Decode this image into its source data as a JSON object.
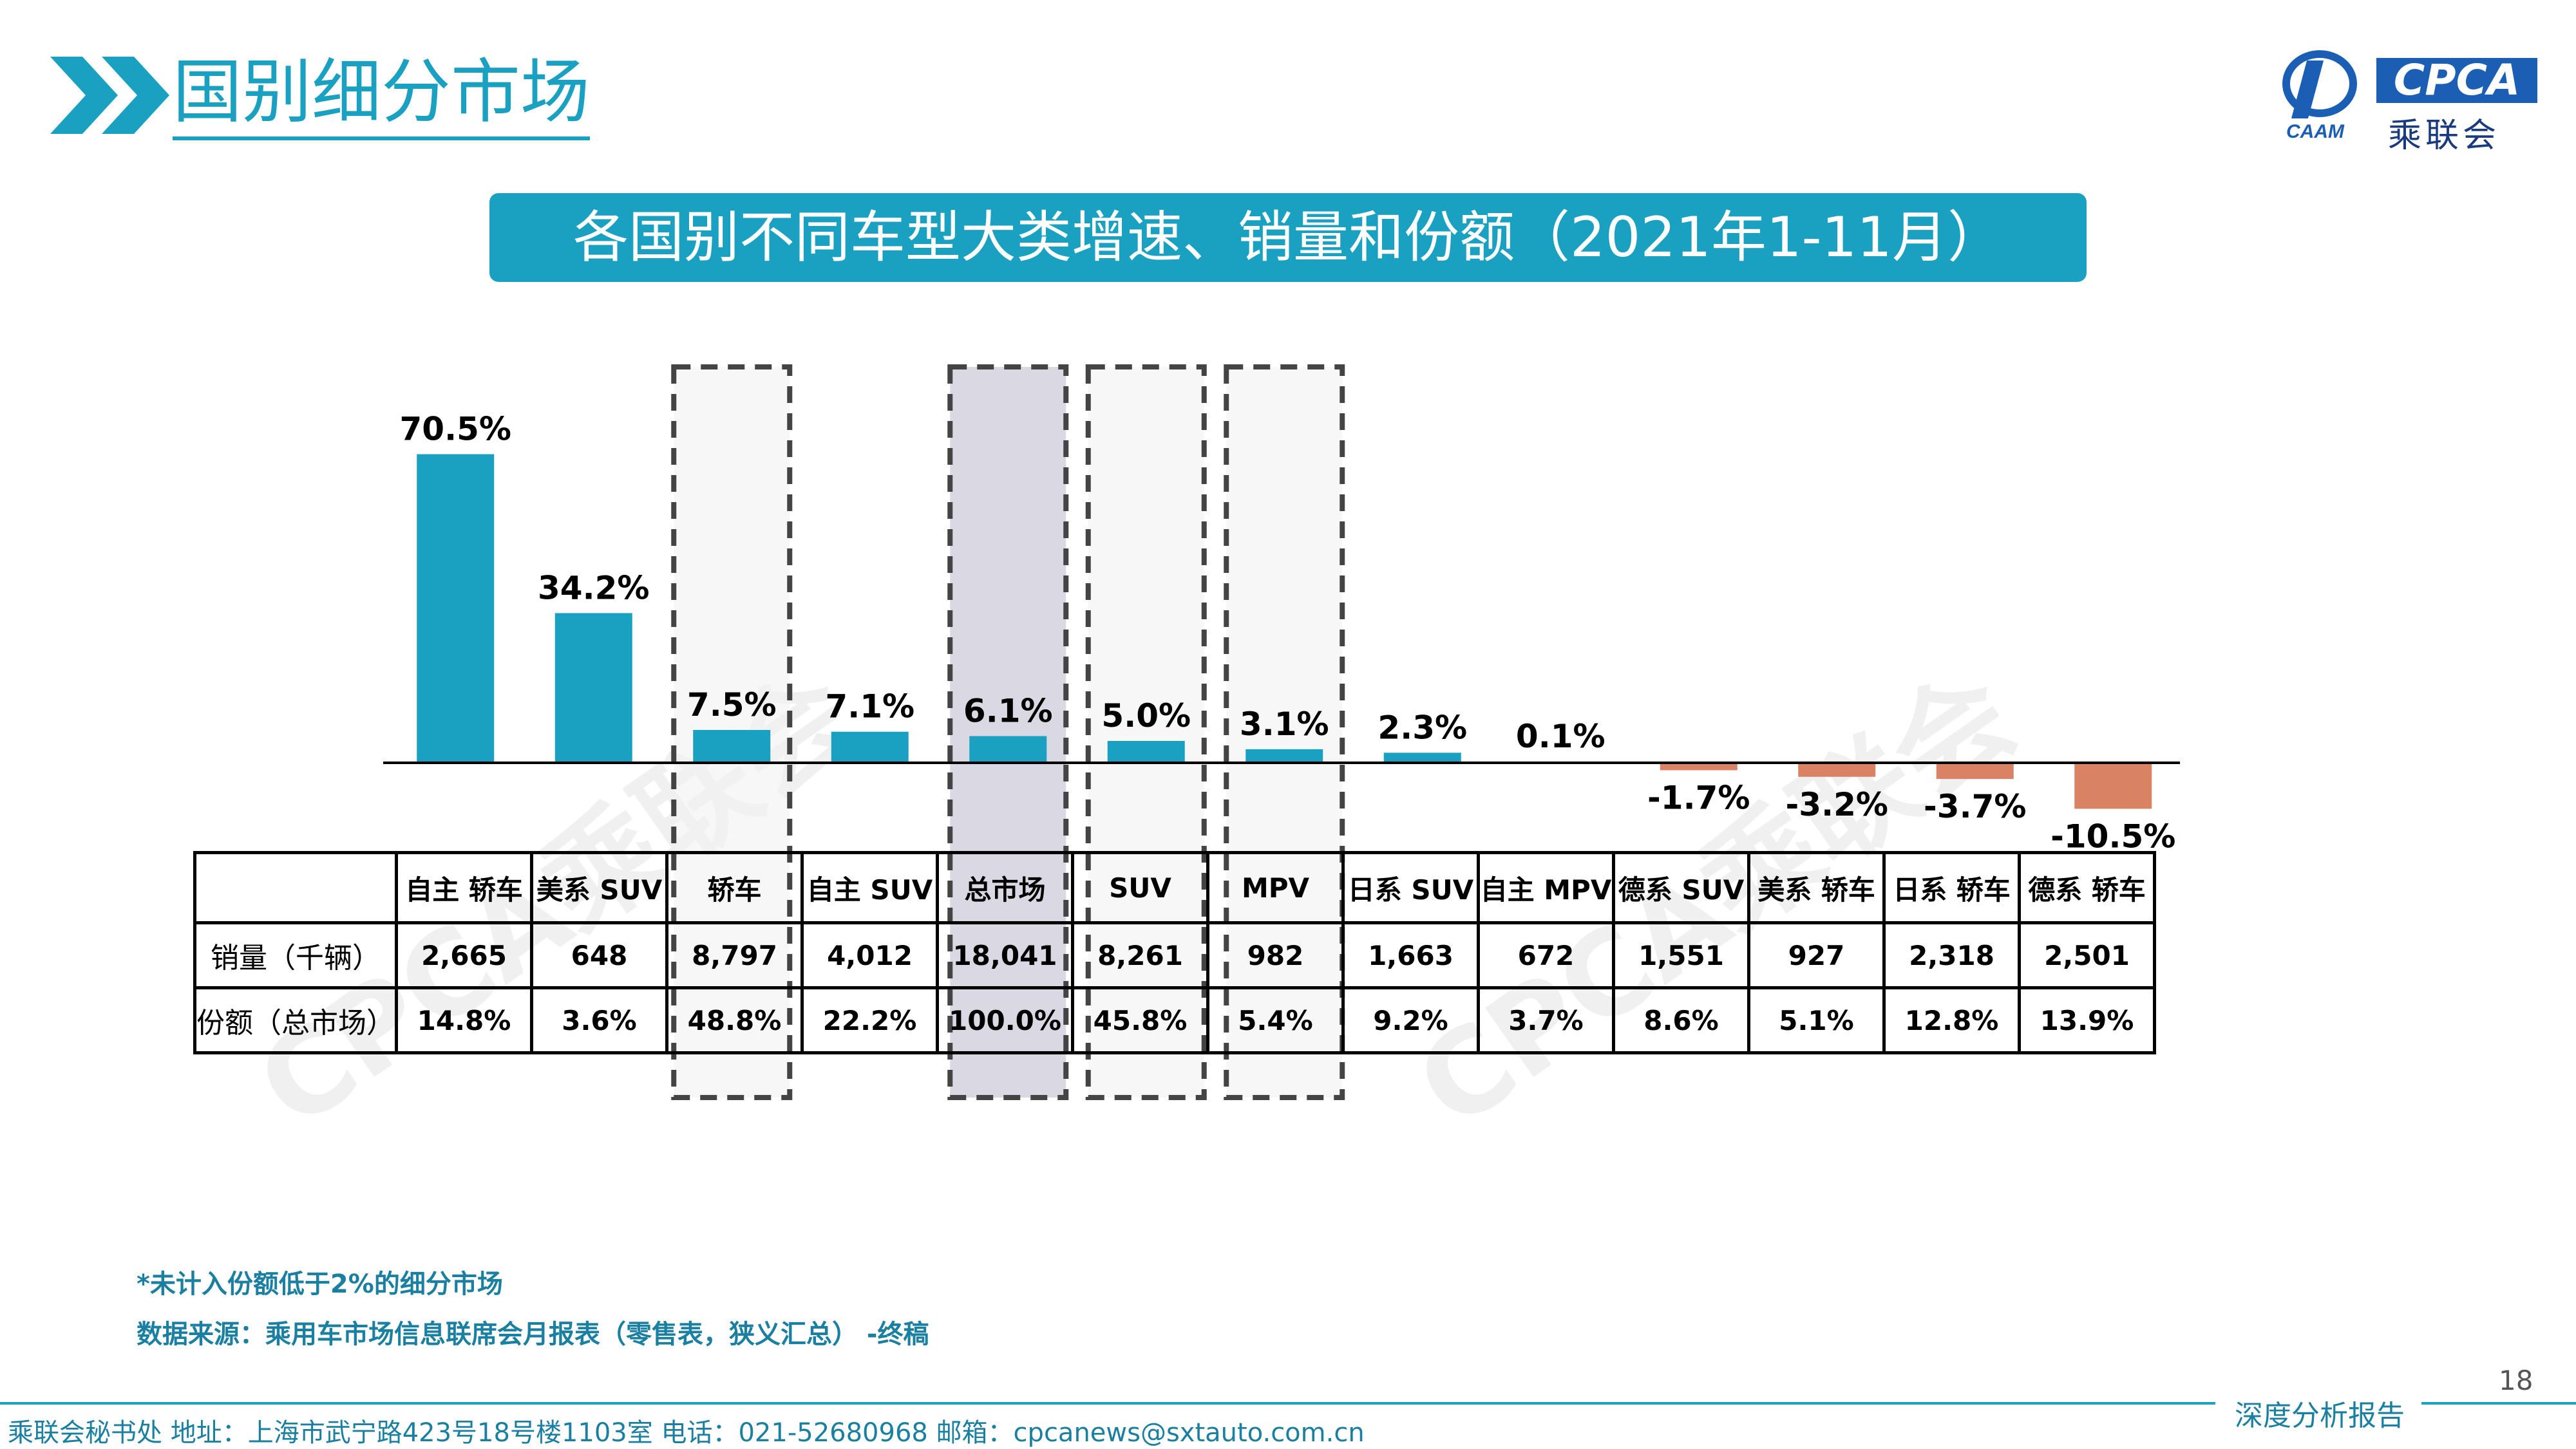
{
  "section_title": "国别细分市场",
  "logo": {
    "text": "CPCA",
    "cn": "乘联会",
    "emblem": "CAAM"
  },
  "banner_title": "各国别不同车型大类增速、销量和份额（2021年1-11月）",
  "watermark": "CPCA乘联会",
  "colors": {
    "positive": "#1aa0c1",
    "negative": "#d98264",
    "accent": "#1aa0c1",
    "highlight": "#d5d4e0"
  },
  "chart_data": {
    "type": "bar",
    "categories": [
      "自主 轿车",
      "美系 SUV",
      "轿车",
      "自主 SUV",
      "总市场",
      "SUV",
      "MPV",
      "日系 SUV",
      "自主 MPV",
      "德系 SUV",
      "美系 轿车",
      "日系 轿车",
      "德系 轿车"
    ],
    "values": [
      70.5,
      34.2,
      7.5,
      7.1,
      6.1,
      5.0,
      3.1,
      2.3,
      0.1,
      -1.7,
      -3.2,
      -3.7,
      -10.5
    ],
    "value_labels": [
      "70.5%",
      "34.2%",
      "7.5%",
      "7.1%",
      "6.1%",
      "5.0%",
      "3.1%",
      "2.3%",
      "0.1%",
      "-1.7%",
      "-3.2%",
      "-3.7%",
      "-10.5%"
    ],
    "unit": "%",
    "highlighted_categories": [
      "轿车",
      "总市场",
      "SUV",
      "MPV"
    ]
  },
  "table": {
    "rows": [
      {
        "label": "销量（千辆）",
        "values": [
          "2,665",
          "648",
          "8,797",
          "4,012",
          "18,041",
          "8,261",
          "982",
          "1,663",
          "672",
          "1,551",
          "927",
          "2,318",
          "2,501"
        ]
      },
      {
        "label": "份额（总市场）",
        "values": [
          "14.8%",
          "3.6%",
          "48.8%",
          "22.2%",
          "100.0%",
          "45.8%",
          "5.4%",
          "9.2%",
          "3.7%",
          "8.6%",
          "5.1%",
          "12.8%",
          "13.9%"
        ]
      }
    ]
  },
  "footnotes": [
    "*未计入份额低于2%的细分市场",
    "数据来源：乘用车市场信息联席会月报表（零售表，狭义汇总） -终稿"
  ],
  "footer": {
    "contact": "乘联会秘书处   地址：上海市武宁路423号18号楼1103室   电话：021-52680968   邮箱：cpcanews@sxtauto.com.cn",
    "report_tag": "深度分析报告",
    "page_number": "18"
  }
}
